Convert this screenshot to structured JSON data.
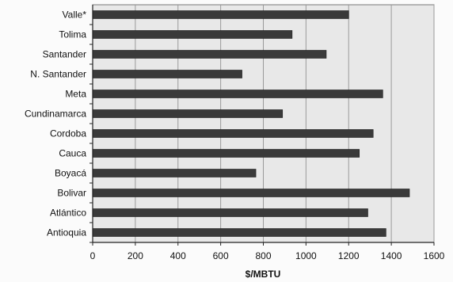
{
  "chart_data": {
    "type": "bar",
    "orientation": "horizontal",
    "categories": [
      "Valle*",
      "Tolima",
      "Santander",
      "N. Santander",
      "Meta",
      "Cundinamarca",
      "Cordoba",
      "Cauca",
      "Boyacá",
      "Bolivar",
      "Atlántico",
      "Antioquia"
    ],
    "values": [
      1200,
      935,
      1095,
      700,
      1360,
      890,
      1315,
      1250,
      765,
      1485,
      1290,
      1375
    ],
    "title": "",
    "xlabel": "$/MBTU",
    "ylabel": "",
    "xlim": [
      0,
      1600
    ],
    "xticks": [
      0,
      200,
      400,
      600,
      800,
      1000,
      1200,
      1400,
      1600
    ],
    "grid": "vertical",
    "legend": "none",
    "colors": {
      "bar": "#3a3a3a",
      "plot_background": "#e8e8e8",
      "grid": "#9a9a9a",
      "axis": "#222222"
    }
  }
}
